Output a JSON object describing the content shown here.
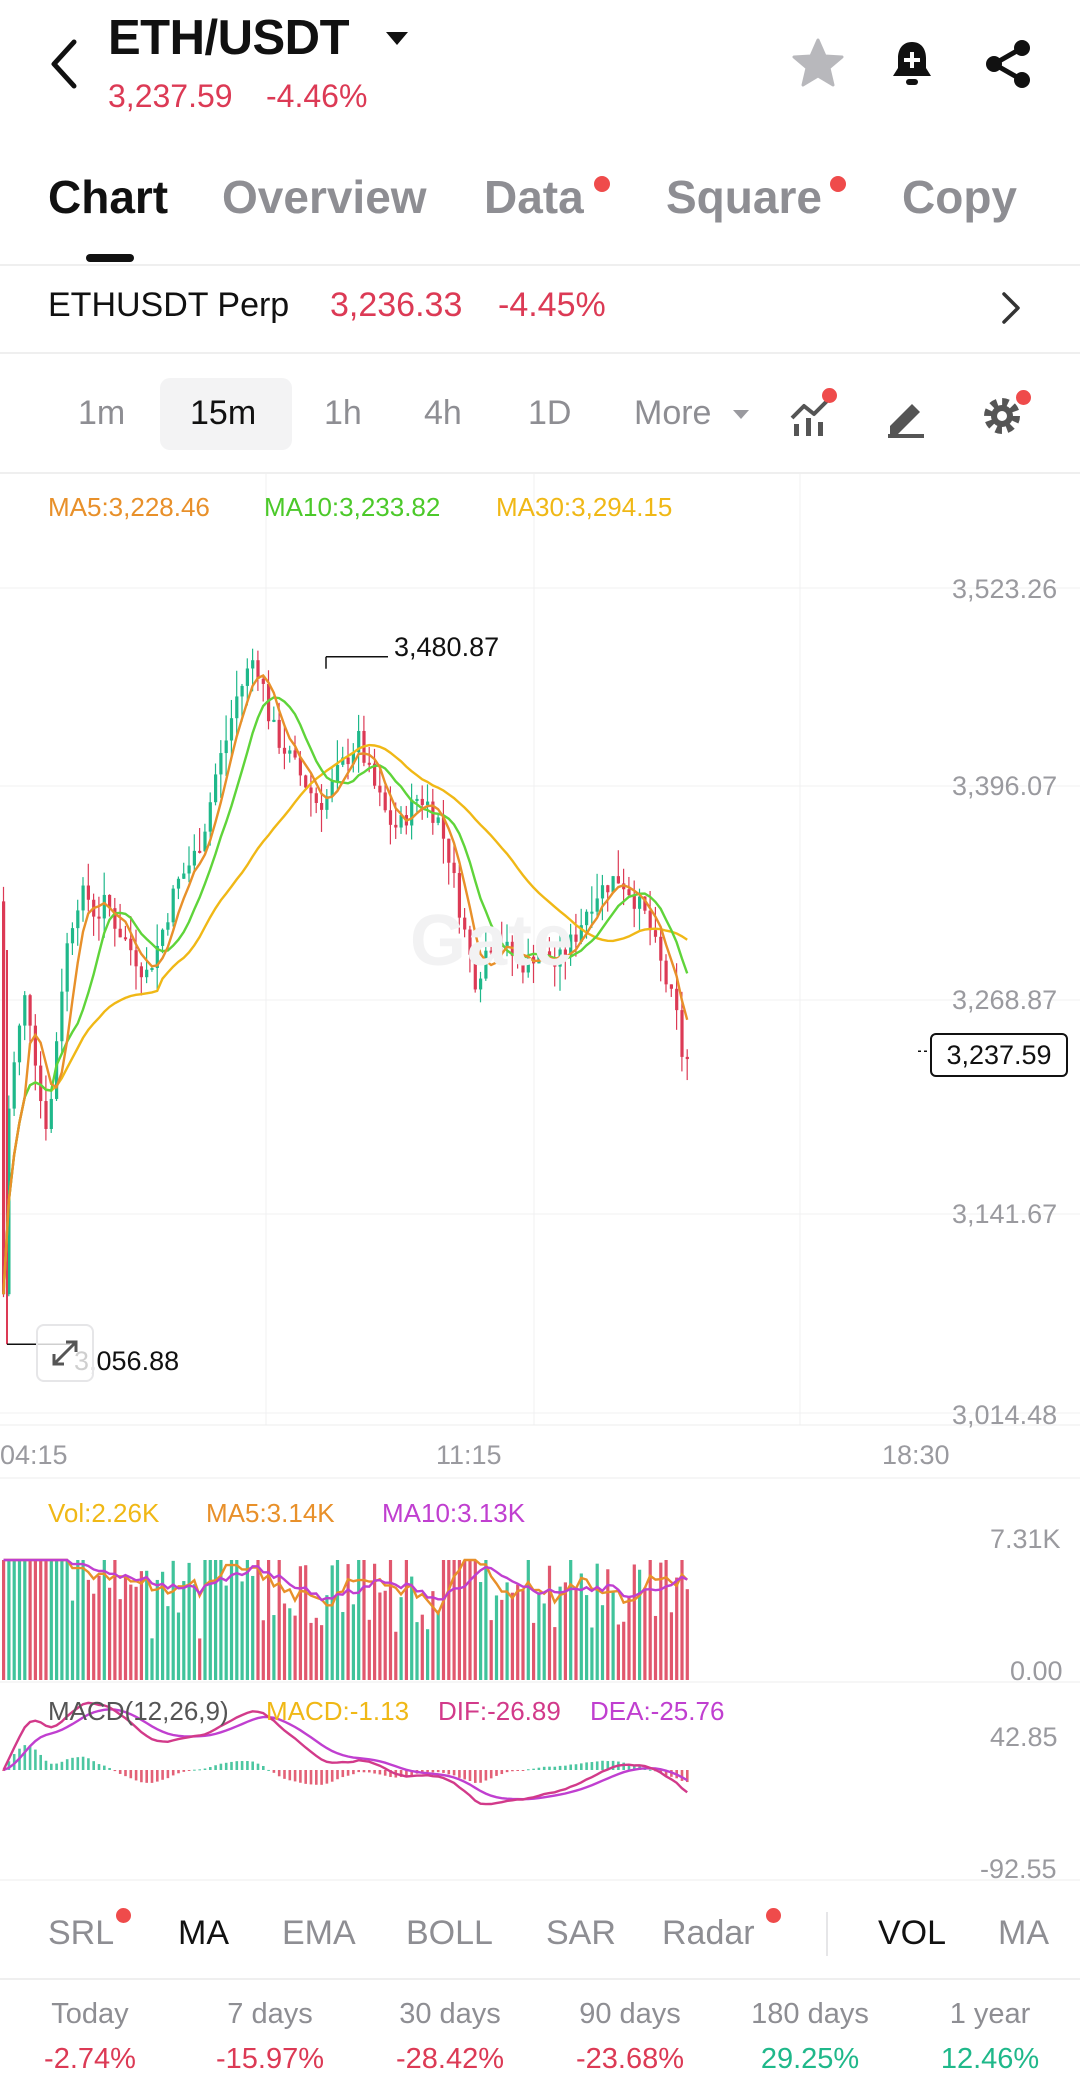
{
  "header": {
    "title": "ETH/USDT",
    "price": "3,237.59",
    "change": "-4.46%"
  },
  "tabs": [
    {
      "label": "Chart",
      "active": true,
      "dot": false
    },
    {
      "label": "Overview",
      "active": false,
      "dot": false
    },
    {
      "label": "Data",
      "active": false,
      "dot": true
    },
    {
      "label": "Square",
      "active": false,
      "dot": true
    },
    {
      "label": "Copy",
      "active": false,
      "dot": false
    }
  ],
  "perp": {
    "name": "ETHUSDT Perp",
    "price": "3,236.33",
    "change": "-4.45%"
  },
  "intervals": {
    "items": [
      "1m",
      "15m",
      "1h",
      "4h",
      "1D"
    ],
    "active": "15m",
    "more": "More"
  },
  "main_chart": {
    "ma5": "MA5:3,228.46",
    "ma10": "MA10:3,233.82",
    "ma30": "MA30:3,294.15",
    "y_ticks": [
      "3,523.26",
      "3,396.07",
      "3,268.87",
      "3,141.67",
      "3,014.48"
    ],
    "x_ticks": [
      "04:15",
      "11:15",
      "18:30"
    ],
    "high_label": "3,480.87",
    "low_label": "3,056.88",
    "last_price": "3,237.59",
    "watermark": "Gate"
  },
  "volume": {
    "vol": "Vol:2.26K",
    "ma5": "MA5:3.14K",
    "ma10": "MA10:3.13K",
    "y_top": "7.31K",
    "y_bottom": "0.00"
  },
  "macd": {
    "params": "MACD(12,26,9)",
    "macd": "MACD:-1.13",
    "dif": "DIF:-26.89",
    "dea": "DEA:-25.76",
    "y_top": "42.85",
    "y_bottom": "-92.55"
  },
  "indicators": [
    {
      "label": "SRL",
      "active": false,
      "dot": true
    },
    {
      "label": "MA",
      "active": true,
      "dot": false
    },
    {
      "label": "EMA",
      "active": false,
      "dot": false
    },
    {
      "label": "BOLL",
      "active": false,
      "dot": false
    },
    {
      "label": "SAR",
      "active": false,
      "dot": false
    },
    {
      "label": "Radar",
      "active": false,
      "dot": true
    },
    {
      "label": "VOL",
      "active": true,
      "dot": false
    },
    {
      "label": "MA",
      "active": false,
      "dot": false
    }
  ],
  "performance": [
    {
      "label": "Today",
      "value": "-2.74%",
      "up": false
    },
    {
      "label": "7 days",
      "value": "-15.97%",
      "up": false
    },
    {
      "label": "30 days",
      "value": "-28.42%",
      "up": false
    },
    {
      "label": "90 days",
      "value": "-23.68%",
      "up": false
    },
    {
      "label": "180 days",
      "value": "29.25%",
      "up": true
    },
    {
      "label": "1 year",
      "value": "12.46%",
      "up": true
    }
  ],
  "colors": {
    "red": "#dc3a55",
    "green": "#1fb88a",
    "ma5": "#e8902a",
    "ma10": "#5fd43a",
    "ma30": "#f0b816",
    "vol_ma10": "#c03fd0",
    "dea": "#c03fd0",
    "dif": "#d23a8a"
  },
  "icons": [
    "chevron-left-icon",
    "caret-down-icon",
    "star-icon",
    "bell-plus-icon",
    "share-icon",
    "chevron-right-icon",
    "indicator-chart-icon",
    "pen-icon",
    "gear-icon",
    "expand-icon"
  ],
  "chart_data": {
    "type": "candlestick",
    "symbol": "ETH/USDT",
    "interval": "15m",
    "y_axis": [
      3014.48,
      3141.67,
      3268.87,
      3396.07,
      3523.26
    ],
    "x_labels": [
      "04:15",
      "11:15",
      "18:30"
    ],
    "visible_high": 3480.87,
    "visible_low": 3056.88,
    "last_price": 3237.59,
    "moving_averages": {
      "MA5": 3228.46,
      "MA10": 3233.82,
      "MA30": 3294.15
    },
    "volume": {
      "last": "2.26K",
      "MA5": "3.14K",
      "MA10": "3.13K",
      "axis": [
        "0.00",
        "7.31K"
      ]
    },
    "macd": {
      "params": [
        12,
        26,
        9
      ],
      "MACD": -1.13,
      "DIF": -26.89,
      "DEA": -25.76,
      "axis": [
        -92.55,
        42.85
      ]
    },
    "price_path": [
      [
        0,
        3330
      ],
      [
        6,
        3056.88
      ],
      [
        12,
        3200
      ],
      [
        20,
        3240
      ],
      [
        30,
        3275
      ],
      [
        40,
        3230
      ],
      [
        48,
        3190
      ],
      [
        56,
        3210
      ],
      [
        62,
        3260
      ],
      [
        70,
        3300
      ],
      [
        80,
        3330
      ],
      [
        90,
        3335
      ],
      [
        100,
        3320
      ],
      [
        110,
        3330
      ],
      [
        120,
        3315
      ],
      [
        130,
        3305
      ],
      [
        140,
        3295
      ],
      [
        150,
        3285
      ],
      [
        160,
        3300
      ],
      [
        170,
        3320
      ],
      [
        180,
        3340
      ],
      [
        190,
        3350
      ],
      [
        200,
        3360
      ],
      [
        210,
        3380
      ],
      [
        220,
        3410
      ],
      [
        230,
        3430
      ],
      [
        240,
        3455
      ],
      [
        250,
        3470
      ],
      [
        258,
        3480.87
      ],
      [
        266,
        3465
      ],
      [
        274,
        3440
      ],
      [
        282,
        3430
      ],
      [
        292,
        3420
      ],
      [
        302,
        3410
      ],
      [
        312,
        3400
      ],
      [
        322,
        3390
      ],
      [
        332,
        3395
      ],
      [
        342,
        3410
      ],
      [
        352,
        3420
      ],
      [
        362,
        3430
      ],
      [
        372,
        3410
      ],
      [
        382,
        3395
      ],
      [
        392,
        3380
      ],
      [
        402,
        3375
      ],
      [
        412,
        3385
      ],
      [
        422,
        3395
      ],
      [
        432,
        3390
      ],
      [
        442,
        3380
      ],
      [
        452,
        3360
      ],
      [
        462,
        3330
      ],
      [
        472,
        3300
      ],
      [
        480,
        3280
      ],
      [
        490,
        3300
      ],
      [
        500,
        3310
      ],
      [
        510,
        3300
      ],
      [
        520,
        3295
      ],
      [
        530,
        3290
      ],
      [
        540,
        3300
      ],
      [
        550,
        3295
      ],
      [
        560,
        3290
      ],
      [
        570,
        3300
      ],
      [
        580,
        3310
      ],
      [
        590,
        3325
      ],
      [
        600,
        3335
      ],
      [
        610,
        3340
      ],
      [
        620,
        3345
      ],
      [
        630,
        3340
      ],
      [
        640,
        3330
      ],
      [
        650,
        3320
      ],
      [
        660,
        3300
      ],
      [
        670,
        3280
      ],
      [
        680,
        3260
      ],
      [
        686,
        3235
      ],
      [
        690,
        3230
      ],
      [
        694,
        3237.59
      ]
    ]
  }
}
